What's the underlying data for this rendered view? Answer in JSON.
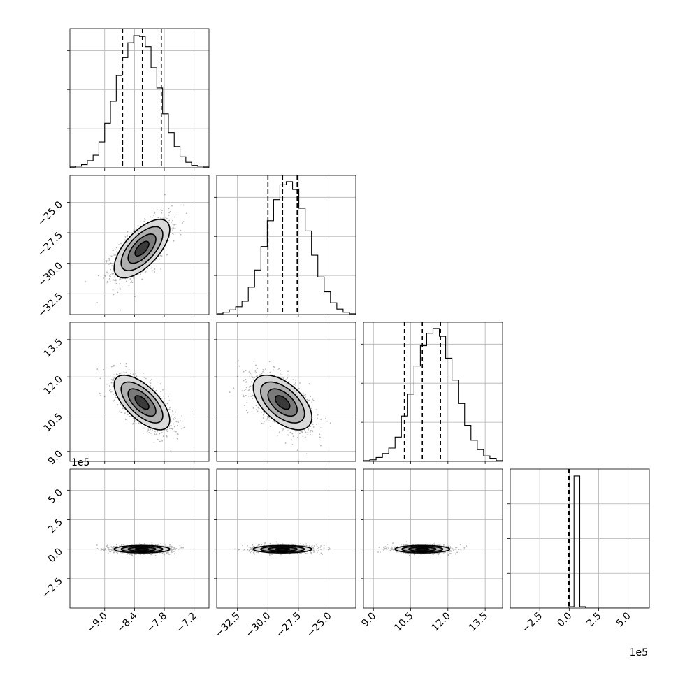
{
  "chart_data": {
    "type": "corner",
    "grid": true,
    "parameters": [
      {
        "index": 0,
        "range": [
          -9.7,
          -6.9
        ],
        "ticks": [
          -9.0,
          -8.4,
          -7.8,
          -7.2
        ],
        "tick_labels": [
          "−9.0",
          "−8.4",
          "−7.8",
          "−7.2"
        ],
        "quantiles": [
          -8.64,
          -8.24,
          -7.86
        ],
        "offset_label": ""
      },
      {
        "index": 1,
        "range": [
          -34.2,
          -22.8
        ],
        "ticks": [
          -32.5,
          -30.0,
          -27.5,
          -25.0
        ],
        "tick_labels": [
          "−32.5",
          "−30.0",
          "−27.5",
          "−25.0"
        ],
        "quantiles": [
          -30.0,
          -28.8,
          -27.6
        ],
        "offset_label": ""
      },
      {
        "index": 2,
        "range": [
          8.6,
          14.2
        ],
        "ticks": [
          9.0,
          10.5,
          12.0,
          13.5
        ],
        "tick_labels": [
          "9.0",
          "10.5",
          "12.0",
          "13.5"
        ],
        "quantiles": [
          10.25,
          10.97,
          11.7
        ],
        "offset_label": ""
      },
      {
        "index": 3,
        "range": [
          -5.0,
          6.8
        ],
        "ticks": [
          -2.5,
          0.0,
          2.5,
          5.0
        ],
        "tick_labels": [
          "−2.5",
          "0.0",
          "2.5",
          "5.0"
        ],
        "quantiles": [
          -0.05,
          0.0,
          0.05
        ],
        "offset_label": "1e5"
      }
    ],
    "histograms": [
      {
        "param": 0,
        "bins": [
          -9.7,
          -6.9
        ],
        "counts": [
          1,
          2,
          4,
          9,
          16,
          33,
          57,
          85,
          118,
          141,
          160,
          169,
          168,
          155,
          128,
          102,
          69,
          45,
          27,
          14,
          7,
          3,
          2,
          1
        ],
        "ymax": 178,
        "yticks": [
          50,
          100,
          150
        ]
      },
      {
        "param": 1,
        "bins": [
          -34.2,
          -22.8
        ],
        "counts": [
          1,
          3,
          6,
          10,
          17,
          35,
          57,
          87,
          120,
          147,
          166,
          170,
          160,
          136,
          107,
          76,
          48,
          29,
          15,
          7,
          3,
          1
        ],
        "ymax": 178,
        "yticks": [
          50,
          100,
          150
        ]
      },
      {
        "param": 2,
        "bins": [
          8.6,
          14.2
        ],
        "counts": [
          1,
          2,
          5,
          10,
          17,
          31,
          58,
          86,
          122,
          148,
          164,
          170,
          160,
          132,
          104,
          74,
          46,
          27,
          15,
          7,
          4,
          1
        ],
        "ymax": 178,
        "yticks": [
          50,
          100,
          150
        ]
      },
      {
        "param": 3,
        "bins": [
          -5.0,
          6.8
        ],
        "counts": [
          0,
          0,
          0,
          0,
          0,
          0,
          0,
          0,
          0,
          0,
          2,
          190,
          2,
          0,
          0,
          0,
          0,
          0,
          0,
          0,
          0,
          0,
          0,
          0
        ],
        "ymax": 200,
        "yticks": [
          50,
          100,
          150
        ]
      }
    ],
    "pairs": [
      {
        "x": 0,
        "y": 1,
        "center": [
          -8.25,
          -28.8
        ],
        "sd": [
          0.28,
          1.2
        ],
        "corr": 0.65
      },
      {
        "x": 0,
        "y": 2,
        "center": [
          -8.25,
          10.97
        ],
        "sd": [
          0.28,
          0.55
        ],
        "corr": -0.65
      },
      {
        "x": 1,
        "y": 2,
        "center": [
          -28.8,
          10.97
        ],
        "sd": [
          1.2,
          0.55
        ],
        "corr": -0.55
      },
      {
        "x": 0,
        "y": 3,
        "center": [
          -8.25,
          0.0
        ],
        "sd": [
          0.28,
          0.16
        ],
        "corr": 0.0
      },
      {
        "x": 1,
        "y": 3,
        "center": [
          -28.8,
          0.0
        ],
        "sd": [
          1.2,
          0.16
        ],
        "corr": 0.0
      },
      {
        "x": 2,
        "y": 3,
        "center": [
          10.97,
          0.0
        ],
        "sd": [
          0.55,
          0.16
        ],
        "corr": 0.0
      }
    ],
    "contour_levels_sigma": [
      0.5,
      1.0,
      1.5,
      2.0
    ]
  }
}
